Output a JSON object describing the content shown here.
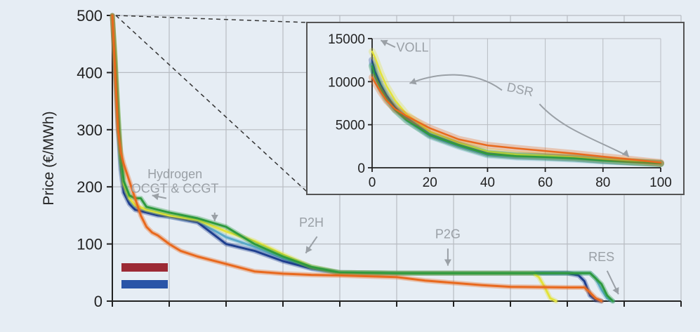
{
  "chart_data": [
    {
      "type": "line",
      "role": "main",
      "ylabel": "Price (€/MWh)",
      "xlabel": "",
      "xlim": [
        0,
        100
      ],
      "ylim": [
        0,
        500
      ],
      "yticks": [
        0,
        100,
        200,
        300,
        400,
        500
      ],
      "xticks": [
        0,
        10,
        20,
        30,
        40,
        50,
        60,
        70,
        80,
        90,
        100
      ],
      "grid": true,
      "annotations": [
        {
          "text": "Hydrogen",
          "x": 11,
          "y": 215
        },
        {
          "text": "OCGT & CCGT",
          "x": 11,
          "y": 190
        },
        {
          "text": "P2H",
          "x": 35,
          "y": 130
        },
        {
          "text": "P2G",
          "x": 59,
          "y": 110
        },
        {
          "text": "RES",
          "x": 86,
          "y": 70
        }
      ],
      "series": [
        {
          "color": "#5aa9c9",
          "x": [
            0,
            0.5,
            1,
            1.5,
            2,
            3,
            4,
            6,
            8,
            10,
            15,
            20,
            25,
            30,
            35,
            40,
            50,
            60,
            70,
            80,
            84,
            85,
            86,
            87,
            88
          ],
          "y": [
            500,
            420,
            320,
            240,
            200,
            175,
            165,
            158,
            153,
            148,
            140,
            112,
            95,
            75,
            58,
            50,
            49,
            49,
            49,
            49,
            49,
            40,
            20,
            5,
            0
          ]
        },
        {
          "color": "#1f3f8f",
          "x": [
            0,
            0.5,
            1,
            1.5,
            2,
            3,
            4,
            6,
            8,
            10,
            15,
            20,
            25,
            30,
            35,
            40,
            50,
            60,
            70,
            80,
            82,
            83,
            84,
            85,
            86
          ],
          "y": [
            500,
            410,
            310,
            230,
            190,
            170,
            160,
            155,
            150,
            148,
            138,
            100,
            88,
            70,
            57,
            50,
            49,
            49,
            49,
            49,
            45,
            35,
            10,
            2,
            0
          ]
        },
        {
          "color": "#e2e23a",
          "x": [
            0,
            0.5,
            1,
            1.5,
            2,
            3,
            4,
            6,
            8,
            10,
            15,
            20,
            25,
            30,
            35,
            40,
            50,
            60,
            70,
            74,
            75,
            76,
            77,
            78
          ],
          "y": [
            500,
            430,
            330,
            250,
            205,
            180,
            168,
            160,
            155,
            150,
            142,
            122,
            105,
            82,
            60,
            50,
            49,
            49,
            49,
            49,
            42,
            25,
            5,
            0
          ]
        },
        {
          "color": "#2e9a3e",
          "x": [
            0,
            0.5,
            1,
            1.5,
            2,
            3,
            4,
            5,
            6,
            8,
            10,
            15,
            20,
            25,
            30,
            35,
            40,
            50,
            60,
            70,
            80,
            84,
            86,
            87,
            88
          ],
          "y": [
            500,
            420,
            330,
            250,
            210,
            185,
            180,
            180,
            165,
            160,
            155,
            145,
            130,
            100,
            78,
            60,
            50,
            49,
            49,
            49,
            49,
            49,
            30,
            10,
            0
          ]
        },
        {
          "color": "#e8691e",
          "x": [
            0,
            0.5,
            1,
            1.5,
            2,
            3,
            4,
            5,
            6,
            7,
            8,
            10,
            12,
            15,
            20,
            25,
            30,
            35,
            40,
            50,
            55,
            60,
            65,
            70,
            80,
            83,
            84,
            85,
            86
          ],
          "y": [
            500,
            400,
            300,
            260,
            240,
            210,
            180,
            150,
            130,
            120,
            115,
            100,
            88,
            78,
            65,
            52,
            48,
            46,
            45,
            42,
            36,
            32,
            28,
            25,
            24,
            24,
            15,
            5,
            0
          ]
        }
      ],
      "legend": [
        {
          "color": "#9c2a35"
        },
        {
          "color": "#2a55a8"
        }
      ]
    },
    {
      "type": "line",
      "role": "inset",
      "xlabel": "",
      "ylabel": "",
      "xlim": [
        0,
        100
      ],
      "ylim": [
        0,
        15000
      ],
      "yticks": [
        0,
        5000,
        10000,
        15000
      ],
      "xticks": [
        0,
        20,
        40,
        60,
        80,
        100
      ],
      "grid": true,
      "annotations": [
        {
          "text": "VOLL",
          "x": 14,
          "y": 13500
        },
        {
          "text": "DSR",
          "x": 51,
          "y": 8600
        }
      ],
      "series": [
        {
          "color": "#5aa9c9",
          "x": [
            0,
            1,
            3,
            5,
            8,
            12,
            20,
            30,
            40,
            50,
            60,
            70,
            80,
            90,
            100
          ],
          "y": [
            12000,
            10800,
            9300,
            8200,
            6800,
            5600,
            3700,
            2500,
            1500,
            1250,
            1150,
            1000,
            800,
            650,
            500
          ]
        },
        {
          "color": "#1f3f8f",
          "x": [
            0,
            1,
            3,
            5,
            8,
            12,
            20,
            30,
            40,
            50,
            60,
            70,
            80,
            90,
            100
          ],
          "y": [
            12500,
            11200,
            9600,
            8400,
            7000,
            5800,
            3900,
            2700,
            1700,
            1400,
            1300,
            1150,
            900,
            700,
            500
          ]
        },
        {
          "color": "#e2e23a",
          "x": [
            0,
            1,
            3,
            5,
            8,
            12,
            20,
            30,
            40,
            50,
            60,
            70,
            80,
            90,
            100
          ],
          "y": [
            13500,
            12800,
            11000,
            9500,
            7800,
            6200,
            4200,
            2900,
            1900,
            1550,
            1400,
            1250,
            1000,
            750,
            500
          ]
        },
        {
          "color": "#2e9a3e",
          "x": [
            0,
            1,
            3,
            5,
            8,
            12,
            20,
            30,
            40,
            50,
            60,
            70,
            80,
            90,
            100
          ],
          "y": [
            11800,
            10600,
            9200,
            8000,
            6700,
            5500,
            3800,
            2600,
            1600,
            1350,
            1250,
            1100,
            850,
            650,
            500
          ]
        },
        {
          "color": "#e8691e",
          "x": [
            0,
            1,
            3,
            5,
            8,
            12,
            20,
            30,
            40,
            50,
            60,
            70,
            80,
            90,
            100
          ],
          "y": [
            10500,
            9900,
            8800,
            7800,
            6800,
            6000,
            4600,
            3300,
            2600,
            2250,
            1950,
            1650,
            1300,
            950,
            600
          ]
        }
      ]
    }
  ]
}
